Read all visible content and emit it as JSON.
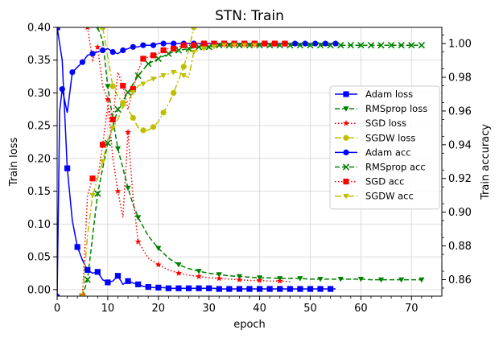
{
  "chart_data": {
    "type": "line",
    "title": "STN: Train",
    "xlabel": "epoch",
    "ylabel_left": "Train loss",
    "ylabel_right": "Train accuracy",
    "xlim": [
      0,
      76
    ],
    "ylim_left": [
      -0.01,
      0.4
    ],
    "ylim_right": [
      0.8502,
      1.0096
    ],
    "xticks": [
      0,
      10,
      20,
      30,
      40,
      50,
      60,
      70
    ],
    "yticks_left": [
      0.0,
      0.05,
      0.1,
      0.15,
      0.2,
      0.25,
      0.3,
      0.35,
      0.4
    ],
    "yticks_left_labels": [
      "0.00",
      "0.05",
      "0.10",
      "0.15",
      "0.20",
      "0.25",
      "0.30",
      "0.35",
      "0.40"
    ],
    "yticks_right": [
      0.86,
      0.88,
      0.9,
      0.92,
      0.94,
      0.96,
      0.98,
      1.0
    ],
    "yticks_right_labels": [
      "0.86",
      "0.88",
      "0.90",
      "0.92",
      "0.94",
      "0.96",
      "0.98",
      "1.00"
    ],
    "grid": true,
    "legend_position": "right",
    "series": [
      {
        "name": "Adam loss",
        "axis": "left",
        "color": "#0000ff",
        "linestyle": "solid",
        "marker": "square",
        "x": [
          0,
          1,
          2,
          3,
          4,
          5,
          6,
          7,
          8,
          9,
          10,
          11,
          12,
          13,
          14,
          15,
          16,
          17,
          18,
          19,
          20,
          21,
          22,
          23,
          24,
          25,
          26,
          27,
          28,
          29,
          30,
          31,
          32,
          33,
          34,
          35,
          36,
          37,
          38,
          39,
          40,
          41,
          42,
          43,
          44,
          45,
          46,
          47,
          48,
          49,
          50,
          51,
          52,
          53,
          54,
          55
        ],
        "y": [
          0.4,
          0.35,
          0.185,
          0.105,
          0.065,
          0.045,
          0.03,
          0.025,
          0.027,
          0.015,
          0.011,
          0.013,
          0.021,
          0.008,
          0.013,
          0.01,
          0.008,
          0.005,
          0.004,
          0.003,
          0.003,
          0.003,
          0.002,
          0.002,
          0.002,
          0.002,
          0.002,
          0.002,
          0.002,
          0.002,
          0.002,
          0.002,
          0.001,
          0.001,
          0.001,
          0.001,
          0.001,
          0.001,
          0.001,
          0.001,
          0.001,
          0.001,
          0.001,
          0.001,
          0.001,
          0.001,
          0.001,
          0.001,
          0.001,
          0.001,
          0.001,
          0.001,
          0.001,
          0.001,
          0.001,
          0.001
        ],
        "markevery": 2
      },
      {
        "name": "RMSprop loss",
        "axis": "left",
        "color": "#008000",
        "linestyle": "dashed",
        "marker": "triangle-down",
        "x": [
          8,
          9,
          10,
          11,
          12,
          13,
          14,
          15,
          16,
          18,
          20,
          22,
          24,
          26,
          28,
          30,
          32,
          34,
          36,
          38,
          40,
          42,
          44,
          46,
          48,
          50,
          52,
          54,
          56,
          58,
          60,
          62,
          64,
          66,
          68,
          70,
          72
        ],
        "y": [
          0.4,
          0.38,
          0.31,
          0.26,
          0.215,
          0.185,
          0.155,
          0.13,
          0.11,
          0.082,
          0.063,
          0.048,
          0.038,
          0.032,
          0.028,
          0.025,
          0.023,
          0.021,
          0.02,
          0.019,
          0.018,
          0.018,
          0.017,
          0.017,
          0.017,
          0.016,
          0.016,
          0.016,
          0.016,
          0.016,
          0.016,
          0.015,
          0.015,
          0.015,
          0.015,
          0.015,
          0.015
        ],
        "markevery": 2
      },
      {
        "name": "SGD loss",
        "axis": "left",
        "color": "#ff0000",
        "linestyle": "dotted",
        "marker": "star",
        "x": [
          6,
          7,
          8,
          9,
          10,
          11,
          12,
          13,
          14,
          15,
          16,
          18,
          20,
          22,
          24,
          26,
          28,
          30,
          32,
          34,
          36,
          38,
          40,
          42,
          44,
          46
        ],
        "y": [
          0.4,
          0.35,
          0.37,
          0.31,
          0.29,
          0.2,
          0.15,
          0.11,
          0.24,
          0.14,
          0.073,
          0.048,
          0.038,
          0.03,
          0.025,
          0.022,
          0.02,
          0.018,
          0.017,
          0.016,
          0.015,
          0.014,
          0.014,
          0.013,
          0.013,
          0.012
        ],
        "markevery": 2
      },
      {
        "name": "SGDW loss",
        "axis": "left",
        "color": "#bfbf00",
        "linestyle": "dashdot",
        "marker": "circle",
        "x": [
          9,
          10,
          11,
          12,
          13,
          14,
          15,
          16,
          17,
          18,
          19,
          20,
          21,
          22,
          23,
          24,
          25,
          26,
          27
        ],
        "y": [
          0.4,
          0.355,
          0.31,
          0.295,
          0.285,
          0.275,
          0.262,
          0.247,
          0.243,
          0.243,
          0.248,
          0.256,
          0.27,
          0.283,
          0.3,
          0.32,
          0.34,
          0.365,
          0.4
        ],
        "markevery": 2
      },
      {
        "name": "Adam acc",
        "axis": "right",
        "color": "#0000ff",
        "linestyle": "solid",
        "marker": "circle",
        "x": [
          0,
          0.5,
          1,
          2,
          3,
          4,
          5,
          6,
          7,
          8,
          9,
          10,
          11,
          12,
          13,
          14,
          15,
          16,
          17,
          18,
          19,
          20,
          21,
          22,
          23,
          24,
          25,
          26,
          27,
          28,
          29,
          30,
          31,
          32,
          33,
          34,
          35,
          36,
          37,
          38,
          39,
          40,
          41,
          42,
          43,
          44,
          45,
          46,
          47,
          48,
          49,
          50,
          51,
          52,
          53,
          54,
          55
        ],
        "y": [
          0.85,
          0.96,
          0.973,
          0.959,
          0.983,
          0.986,
          0.989,
          0.993,
          0.994,
          0.995,
          0.996,
          0.997,
          0.995,
          0.994,
          0.996,
          0.997,
          0.998,
          0.998,
          0.999,
          0.999,
          0.999,
          1.0,
          1.0,
          1.0,
          1.0,
          1.0,
          1.0,
          1.0,
          1.0,
          1.0,
          1.0,
          1.0,
          1.0,
          1.0,
          1.0,
          1.0,
          1.0,
          1.0,
          1.0,
          1.0,
          1.0,
          1.0,
          1.0,
          1.0,
          1.0,
          1.0,
          1.0,
          1.0,
          1.0,
          1.0,
          1.0,
          1.0,
          1.0,
          1.0,
          1.0,
          1.0,
          1.0
        ],
        "markevery": 2
      },
      {
        "name": "RMSprop acc",
        "axis": "right",
        "color": "#008000",
        "linestyle": "dashed",
        "marker": "x",
        "x": [
          5,
          6,
          8,
          10,
          12,
          14,
          16,
          18,
          20,
          22,
          24,
          26,
          28,
          30,
          32,
          34,
          36,
          38,
          40,
          42,
          44,
          46,
          48,
          50,
          52,
          54,
          56,
          58,
          60,
          62,
          64,
          66,
          68,
          70,
          72
        ],
        "y": [
          0.85,
          0.86,
          0.911,
          0.941,
          0.961,
          0.971,
          0.981,
          0.988,
          0.991,
          0.994,
          0.996,
          0.997,
          0.998,
          0.998,
          0.999,
          0.999,
          0.999,
          0.999,
          0.999,
          0.999,
          0.999,
          0.999,
          0.999,
          0.999,
          0.999,
          0.999,
          0.999,
          0.999,
          0.999,
          0.999,
          0.999,
          0.999,
          0.999,
          0.999,
          0.999
        ],
        "markevery": 1
      },
      {
        "name": "SGD acc",
        "axis": "right",
        "color": "#ff0000",
        "linestyle": "dotted",
        "marker": "square",
        "x": [
          5,
          6,
          7,
          8,
          9,
          10,
          11,
          12,
          13,
          14,
          15,
          16,
          17,
          18,
          19,
          20,
          21,
          22,
          23,
          24,
          25,
          26,
          27,
          28,
          29,
          30,
          31,
          32,
          33,
          34,
          35,
          36,
          37,
          38,
          39,
          40,
          41,
          42,
          43,
          44,
          45,
          46
        ],
        "y": [
          0.85,
          0.91,
          0.92,
          0.92,
          0.94,
          0.963,
          0.955,
          0.983,
          0.975,
          0.961,
          0.973,
          0.984,
          0.991,
          0.992,
          0.993,
          0.994,
          0.996,
          0.997,
          0.997,
          0.998,
          0.999,
          0.999,
          0.999,
          1.0,
          1.0,
          1.0,
          1.0,
          1.0,
          1.0,
          1.0,
          1.0,
          1.0,
          1.0,
          1.0,
          1.0,
          1.0,
          1.0,
          1.0,
          1.0,
          1.0,
          1.0,
          1.0
        ],
        "markevery": 2
      },
      {
        "name": "SGDW acc",
        "axis": "right",
        "color": "#bfbf00",
        "linestyle": "dashdot",
        "marker": "triangle-down",
        "x": [
          5,
          6,
          7,
          8,
          9,
          10,
          11,
          12,
          13,
          14,
          15,
          16,
          17,
          18,
          19,
          20,
          21,
          22,
          23,
          24,
          25,
          26,
          27,
          28,
          29,
          30,
          31,
          32,
          33,
          34,
          35,
          36,
          37,
          38,
          39,
          40
        ],
        "y": [
          0.85,
          0.886,
          0.91,
          0.92,
          0.93,
          0.943,
          0.95,
          0.955,
          0.963,
          0.966,
          0.971,
          0.975,
          0.976,
          0.978,
          0.979,
          0.98,
          0.981,
          0.982,
          0.983,
          0.983,
          0.981,
          0.98,
          0.995,
          0.996,
          0.997,
          0.997,
          0.998,
          0.999,
          0.999,
          0.999,
          0.999,
          0.999,
          0.999,
          0.999,
          0.999,
          0.999
        ],
        "markevery": 2
      }
    ]
  }
}
